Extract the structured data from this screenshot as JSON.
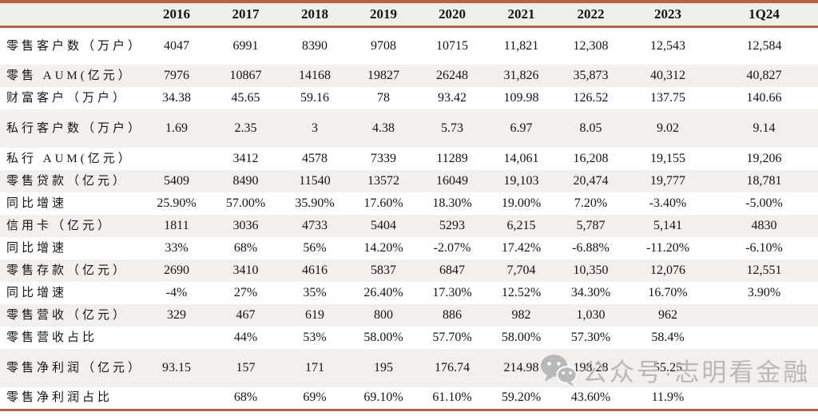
{
  "table": {
    "columns": [
      "2016",
      "2017",
      "2018",
      "2019",
      "2020",
      "2021",
      "2022",
      "2023",
      "1Q24"
    ],
    "rows": [
      {
        "label": "零售客户数（万户）",
        "values": [
          "4047",
          "6991",
          "8390",
          "9708",
          "10715",
          "11,821",
          "12,308",
          "12,543",
          "12,584"
        ]
      },
      {
        "label": "零售 AUM(亿元）",
        "values": [
          "7976",
          "10867",
          "14168",
          "19827",
          "26248",
          "31,826",
          "35,873",
          "40,312",
          "40,827"
        ]
      },
      {
        "label": "财富客户（万户）",
        "values": [
          "34.38",
          "45.65",
          "59.16",
          "78",
          "93.42",
          "109.98",
          "126.52",
          "137.75",
          "140.66"
        ]
      },
      {
        "label": "私行客户数（万户）",
        "values": [
          "1.69",
          "2.35",
          "3",
          "4.38",
          "5.73",
          "6.97",
          "8.05",
          "9.02",
          "9.14"
        ]
      },
      {
        "label": "私行 AUM(亿元）",
        "values": [
          "",
          "3412",
          "4578",
          "7339",
          "11289",
          "14,061",
          "16,208",
          "19,155",
          "19,206"
        ]
      },
      {
        "label": "零售贷款（亿元）",
        "values": [
          "5409",
          "8490",
          "11540",
          "13572",
          "16049",
          "19,103",
          "20,474",
          "19,777",
          "18,781"
        ]
      },
      {
        "label": "同比增速",
        "values": [
          "25.90%",
          "57.00%",
          "35.90%",
          "17.60%",
          "18.30%",
          "19.00%",
          "7.20%",
          "-3.40%",
          "-5.00%"
        ]
      },
      {
        "label": "信用卡（亿元）",
        "values": [
          "1811",
          "3036",
          "4733",
          "5404",
          "5293",
          "6,215",
          "5,787",
          "5,141",
          "4830"
        ]
      },
      {
        "label": "同比增速",
        "values": [
          "33%",
          "68%",
          "56%",
          "14.20%",
          "-2.07%",
          "17.42%",
          "-6.88%",
          "-11.20%",
          "-6.10%"
        ]
      },
      {
        "label": "零售存款（亿元）",
        "values": [
          "2690",
          "3410",
          "4616",
          "5837",
          "6847",
          "7,704",
          "10,350",
          "12,076",
          "12,551"
        ]
      },
      {
        "label": "同比增速",
        "values": [
          "-4%",
          "27%",
          "35%",
          "26.40%",
          "17.30%",
          "12.52%",
          "34.30%",
          "16.70%",
          "3.90%"
        ]
      },
      {
        "label": "零售营收（亿元）",
        "values": [
          "329",
          "467",
          "619",
          "800",
          "886",
          "982",
          "1,030",
          "962",
          ""
        ]
      },
      {
        "label": "零售营收占比",
        "values": [
          "",
          "44%",
          "53%",
          "58.00%",
          "57.70%",
          "58.00%",
          "57.30%",
          "58.4%",
          ""
        ]
      },
      {
        "label": "零售净利润（亿元）",
        "values": [
          "93.15",
          "157",
          "171",
          "195",
          "176.74",
          "214.98",
          "198.28",
          "55.25",
          ""
        ]
      },
      {
        "label": "零售净利润占比",
        "values": [
          "",
          "68%",
          "69%",
          "69.10%",
          "61.10%",
          "59.20%",
          "43.60%",
          "11.9%",
          ""
        ]
      }
    ]
  },
  "watermark": {
    "icon": "wechat-icon",
    "text": "公众号·志明看金融"
  },
  "colors": {
    "accent": "#b66249",
    "row_shade": "#f2efec",
    "header_shade": "#f1efec",
    "text": "#141414",
    "watermark": "#b9b9b9"
  }
}
